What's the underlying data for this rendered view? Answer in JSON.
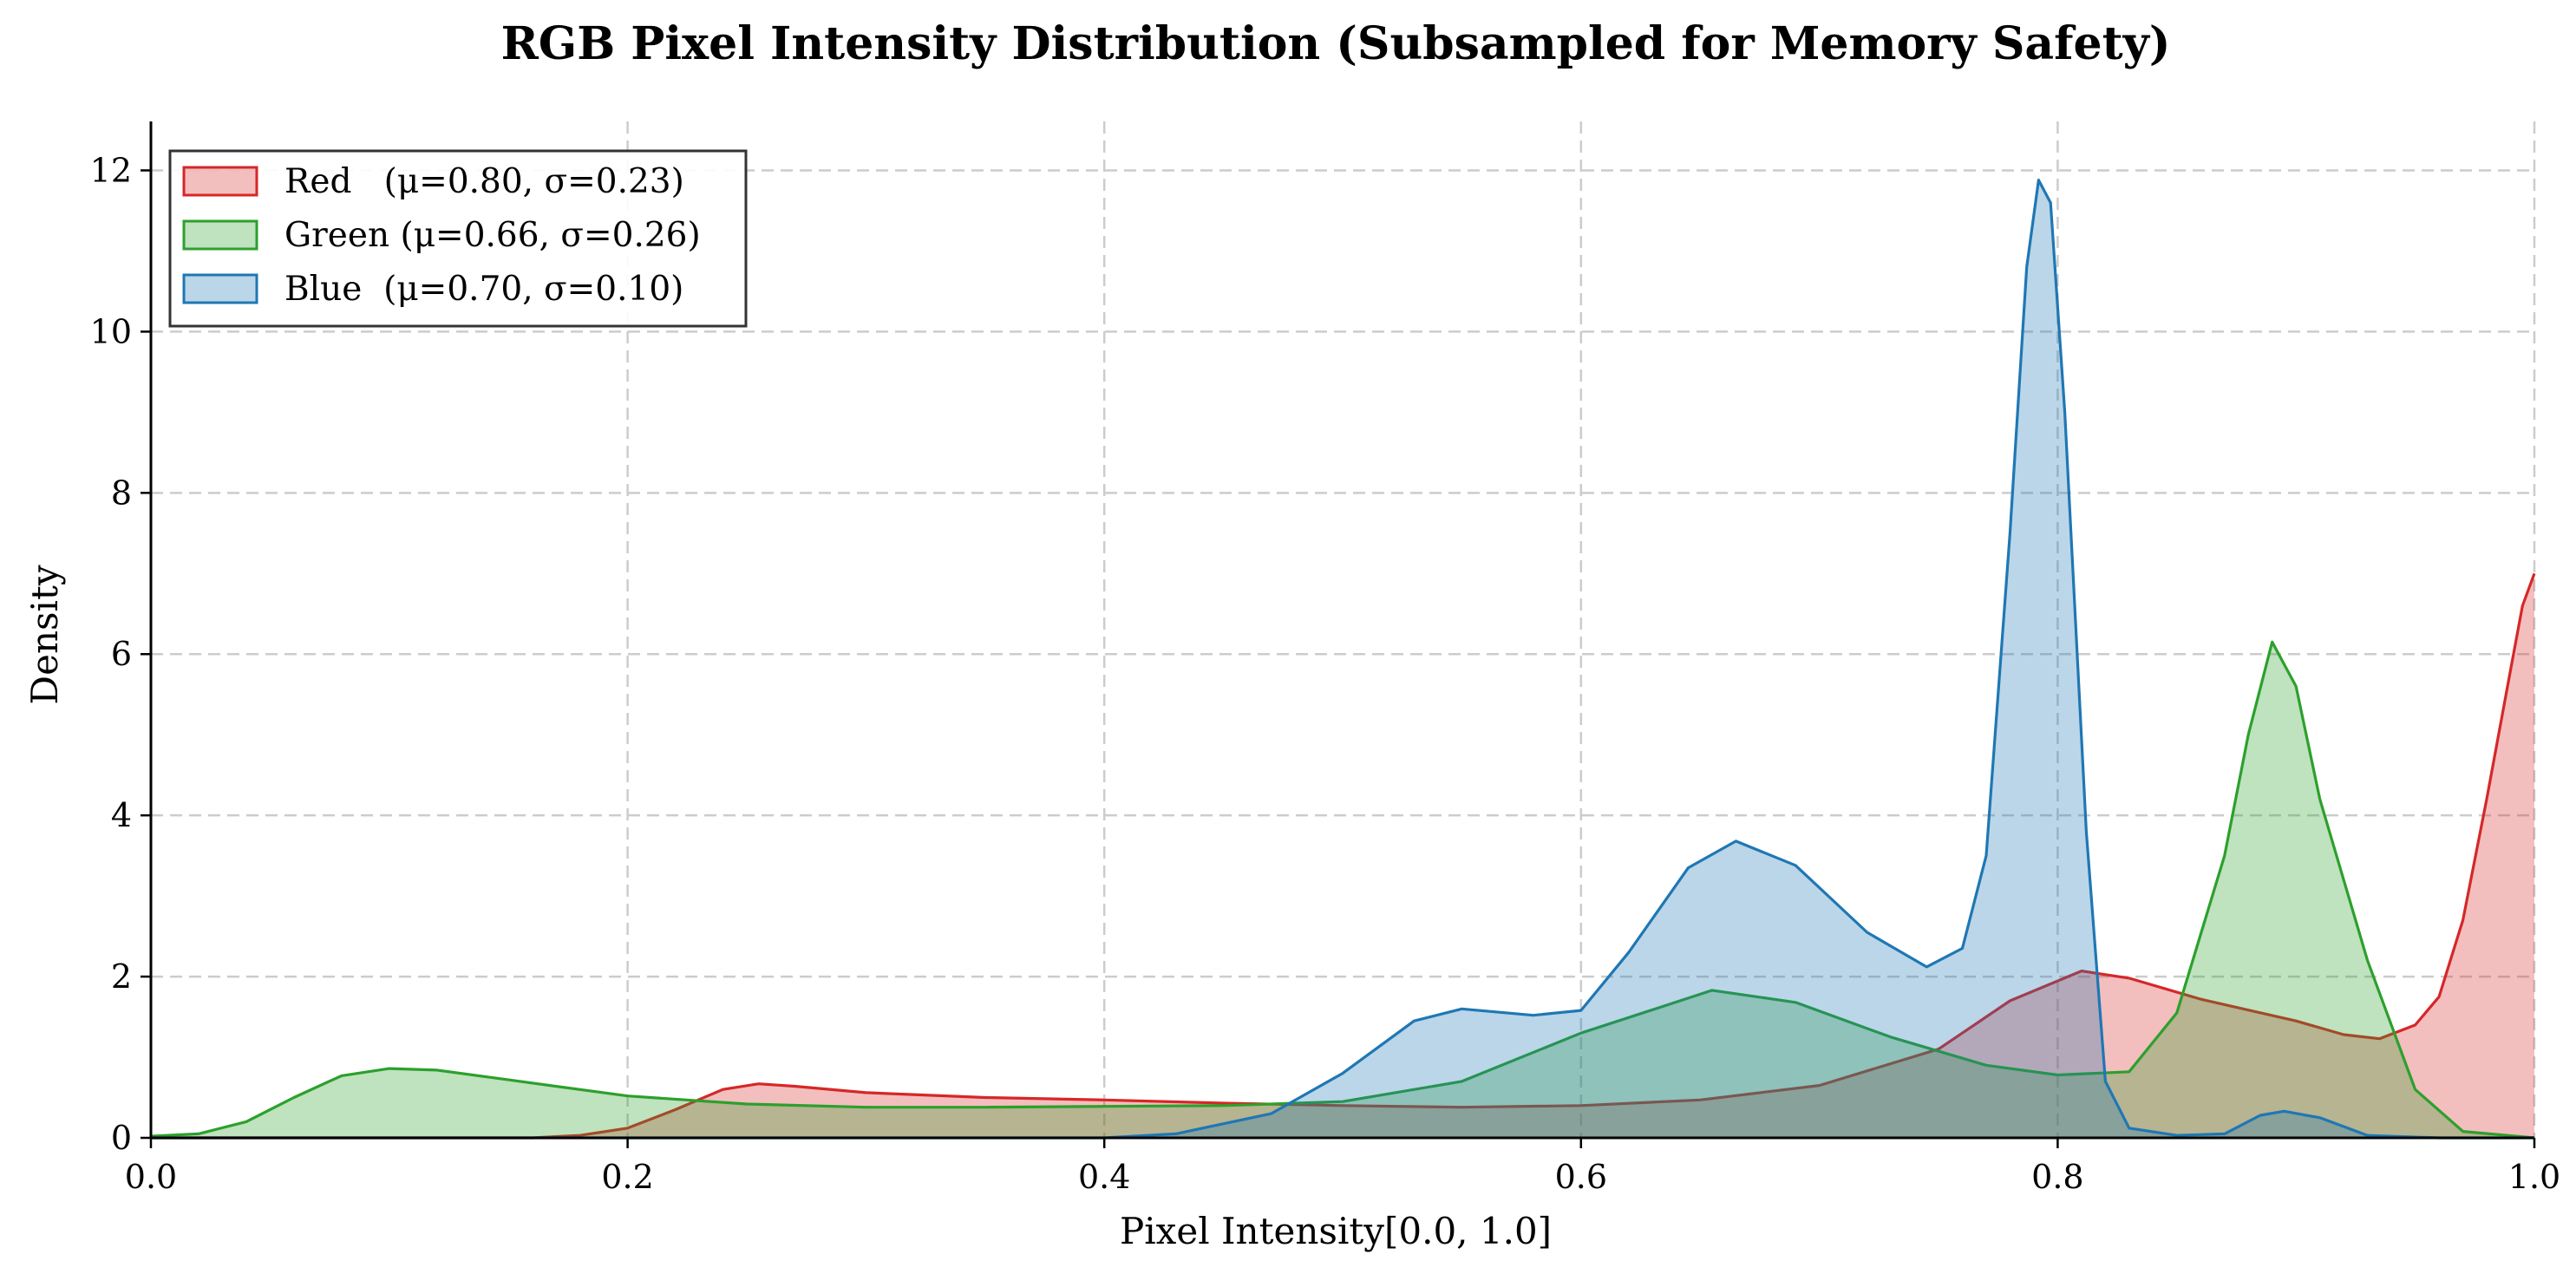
{
  "chart_data": {
    "type": "area",
    "title": "RGB Pixel Intensity Distribution (Subsampled for Memory Safety)",
    "xlabel": "Pixel Intensity[0.0, 1.0]",
    "ylabel": "Density",
    "xlim": [
      0.0,
      1.0
    ],
    "ylim": [
      0,
      12.5
    ],
    "x_ticks": [
      "0.0",
      "0.2",
      "0.4",
      "0.6",
      "0.8",
      "1.0"
    ],
    "y_ticks": [
      "0",
      "2",
      "4",
      "6",
      "8",
      "10",
      "12"
    ],
    "grid": true,
    "legend_position": "top-left",
    "series": [
      {
        "name": "Red   (μ=0.80, σ=0.23)",
        "color": "#d62728",
        "points": [
          [
            0.0,
            0
          ],
          [
            0.16,
            0
          ],
          [
            0.18,
            0.03
          ],
          [
            0.2,
            0.12
          ],
          [
            0.22,
            0.35
          ],
          [
            0.24,
            0.6
          ],
          [
            0.255,
            0.67
          ],
          [
            0.27,
            0.64
          ],
          [
            0.3,
            0.56
          ],
          [
            0.35,
            0.5
          ],
          [
            0.4,
            0.47
          ],
          [
            0.45,
            0.43
          ],
          [
            0.5,
            0.4
          ],
          [
            0.55,
            0.38
          ],
          [
            0.6,
            0.4
          ],
          [
            0.65,
            0.47
          ],
          [
            0.7,
            0.65
          ],
          [
            0.75,
            1.1
          ],
          [
            0.78,
            1.7
          ],
          [
            0.81,
            2.07
          ],
          [
            0.83,
            1.98
          ],
          [
            0.86,
            1.72
          ],
          [
            0.9,
            1.45
          ],
          [
            0.92,
            1.28
          ],
          [
            0.935,
            1.23
          ],
          [
            0.95,
            1.4
          ],
          [
            0.96,
            1.75
          ],
          [
            0.97,
            2.7
          ],
          [
            0.98,
            4.2
          ],
          [
            0.99,
            5.8
          ],
          [
            0.995,
            6.6
          ],
          [
            1.0,
            7.0
          ],
          [
            1.0,
            7.0
          ]
        ]
      },
      {
        "name": "Green (μ=0.66, σ=0.26)",
        "color": "#2ca02c",
        "points": [
          [
            0.0,
            0.02
          ],
          [
            0.02,
            0.05
          ],
          [
            0.04,
            0.2
          ],
          [
            0.06,
            0.5
          ],
          [
            0.08,
            0.77
          ],
          [
            0.1,
            0.86
          ],
          [
            0.12,
            0.84
          ],
          [
            0.15,
            0.72
          ],
          [
            0.2,
            0.52
          ],
          [
            0.25,
            0.42
          ],
          [
            0.3,
            0.38
          ],
          [
            0.35,
            0.38
          ],
          [
            0.4,
            0.39
          ],
          [
            0.45,
            0.4
          ],
          [
            0.5,
            0.45
          ],
          [
            0.55,
            0.7
          ],
          [
            0.6,
            1.3
          ],
          [
            0.655,
            1.83
          ],
          [
            0.69,
            1.68
          ],
          [
            0.73,
            1.25
          ],
          [
            0.77,
            0.9
          ],
          [
            0.8,
            0.78
          ],
          [
            0.83,
            0.82
          ],
          [
            0.85,
            1.55
          ],
          [
            0.87,
            3.5
          ],
          [
            0.88,
            5.0
          ],
          [
            0.89,
            6.15
          ],
          [
            0.9,
            5.6
          ],
          [
            0.91,
            4.2
          ],
          [
            0.93,
            2.2
          ],
          [
            0.95,
            0.6
          ],
          [
            0.97,
            0.08
          ],
          [
            1.0,
            0.0
          ]
        ]
      },
      {
        "name": "Blue  (μ=0.70, σ=0.10)",
        "color": "#1f77b4",
        "points": [
          [
            0.0,
            0
          ],
          [
            0.4,
            0
          ],
          [
            0.43,
            0.05
          ],
          [
            0.47,
            0.3
          ],
          [
            0.5,
            0.8
          ],
          [
            0.53,
            1.45
          ],
          [
            0.55,
            1.6
          ],
          [
            0.58,
            1.52
          ],
          [
            0.6,
            1.58
          ],
          [
            0.62,
            2.3
          ],
          [
            0.645,
            3.35
          ],
          [
            0.665,
            3.68
          ],
          [
            0.69,
            3.38
          ],
          [
            0.72,
            2.55
          ],
          [
            0.745,
            2.12
          ],
          [
            0.76,
            2.35
          ],
          [
            0.77,
            3.5
          ],
          [
            0.78,
            7.5
          ],
          [
            0.787,
            10.8
          ],
          [
            0.792,
            11.88
          ],
          [
            0.797,
            11.6
          ],
          [
            0.803,
            9.0
          ],
          [
            0.812,
            3.8
          ],
          [
            0.82,
            0.7
          ],
          [
            0.83,
            0.12
          ],
          [
            0.85,
            0.03
          ],
          [
            0.87,
            0.05
          ],
          [
            0.885,
            0.28
          ],
          [
            0.895,
            0.33
          ],
          [
            0.91,
            0.25
          ],
          [
            0.93,
            0.03
          ],
          [
            0.96,
            0
          ],
          [
            1.0,
            0
          ]
        ]
      }
    ]
  }
}
